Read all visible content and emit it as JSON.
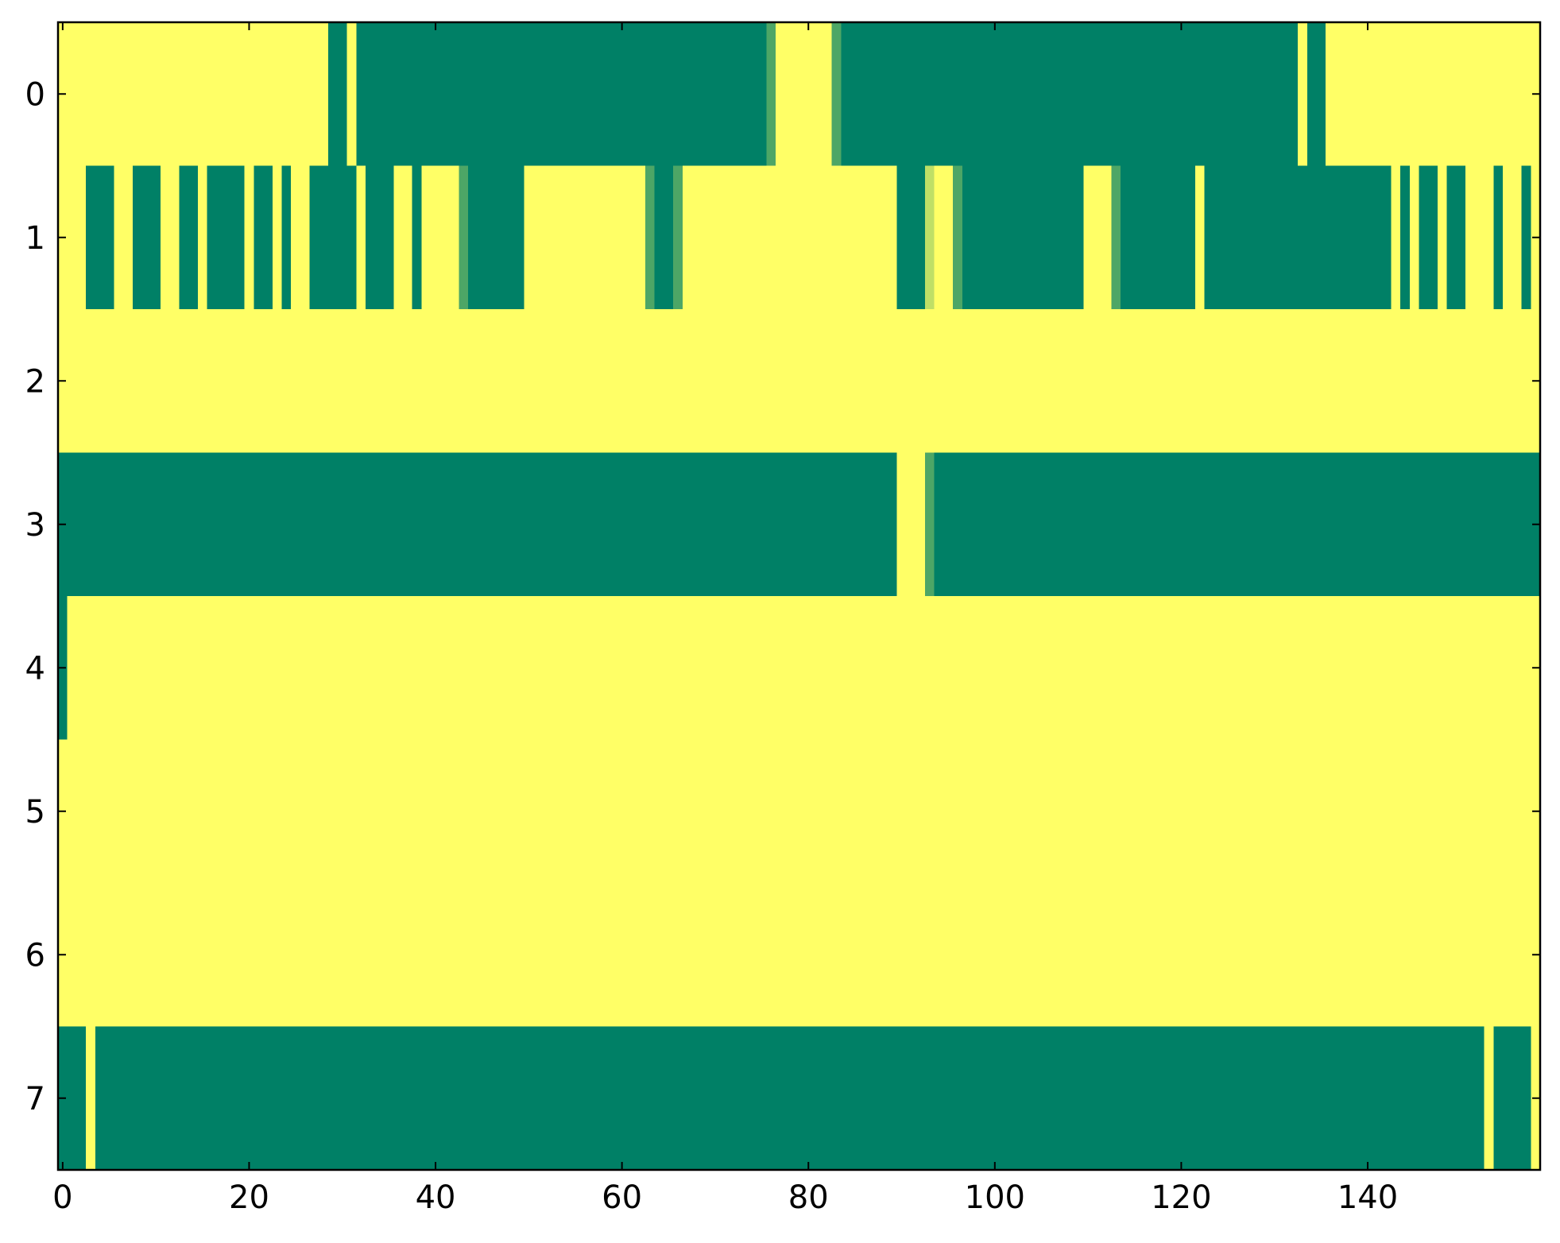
{
  "chart_data": {
    "type": "heatmap",
    "colormap": "summer",
    "xlim": [
      -0.5,
      158.5
    ],
    "ylim": [
      7.5,
      -0.5
    ],
    "xticks": [
      0,
      20,
      40,
      60,
      80,
      100,
      120,
      140
    ],
    "yticks": [
      0,
      1,
      2,
      3,
      4,
      5,
      6,
      7
    ],
    "values": [
      [
        1,
        1,
        1,
        1,
        1,
        1,
        1,
        1,
        1,
        1,
        1,
        1,
        1,
        1,
        1,
        1,
        1,
        1,
        1,
        1,
        1,
        1,
        1,
        1,
        1,
        1,
        1,
        1,
        1,
        0,
        0,
        1,
        0,
        0,
        0,
        0,
        0,
        0,
        0,
        0,
        0,
        0,
        0,
        0,
        0,
        0,
        0,
        0,
        0,
        0,
        0,
        0,
        0,
        0,
        0,
        0,
        0,
        0,
        0,
        0,
        0,
        0,
        0,
        0,
        0,
        0,
        0,
        0,
        0,
        0,
        0,
        0,
        0,
        0,
        0,
        0,
        0.3,
        1,
        1,
        1,
        1,
        1,
        1,
        0.3,
        0,
        0,
        0,
        0,
        0,
        0,
        0,
        0,
        0,
        0,
        0,
        0,
        0,
        0,
        0,
        0,
        0,
        0,
        0,
        0,
        0,
        0,
        0,
        0,
        0,
        0,
        0,
        0,
        0,
        0,
        0,
        0,
        0,
        0,
        0,
        0,
        0,
        0,
        0,
        0,
        0,
        0,
        0,
        0,
        0,
        0,
        0,
        0,
        0,
        1,
        0,
        0,
        1,
        1,
        1,
        1,
        1,
        1,
        1,
        1,
        1,
        1,
        1,
        1,
        1,
        1,
        1,
        1,
        1,
        1,
        1,
        1,
        1,
        1,
        1
      ],
      [
        1,
        1,
        1,
        0,
        0,
        0,
        1,
        1,
        0,
        0,
        0,
        1,
        1,
        0,
        0,
        1,
        0,
        0,
        0,
        0,
        1,
        0,
        0,
        1,
        0,
        1,
        1,
        0,
        0,
        0,
        0,
        0,
        1,
        0,
        0,
        0,
        1,
        1,
        0,
        1,
        1,
        1,
        1,
        0.3,
        0,
        0,
        0,
        0,
        0,
        0,
        1,
        1,
        1,
        1,
        1,
        1,
        1,
        1,
        1,
        1,
        1,
        1,
        1,
        0.3,
        0,
        0,
        0.3,
        1,
        1,
        1,
        1,
        1,
        1,
        1,
        1,
        1,
        1,
        1,
        1,
        1,
        1,
        1,
        1,
        1,
        1,
        1,
        1,
        1,
        1,
        1,
        0,
        0,
        0,
        0.75,
        1,
        1,
        0.3,
        0,
        0,
        0,
        0,
        0,
        0,
        0,
        0,
        0,
        0,
        0,
        0,
        0,
        1,
        1,
        1,
        0.3,
        0,
        0,
        0,
        0,
        0,
        0,
        0,
        0,
        1,
        0,
        0,
        0,
        0,
        0,
        0,
        0,
        0,
        0,
        0,
        0,
        0,
        0,
        0,
        0,
        0,
        0,
        0,
        0,
        0,
        1,
        0,
        1,
        0,
        0,
        1,
        0,
        0,
        1,
        1,
        1,
        0,
        1,
        1,
        0,
        1
      ],
      [
        1,
        1,
        1,
        1,
        1,
        1,
        1,
        1,
        1,
        1,
        1,
        1,
        1,
        1,
        1,
        1,
        1,
        1,
        1,
        1,
        1,
        1,
        1,
        1,
        1,
        1,
        1,
        1,
        1,
        1,
        1,
        1,
        1,
        1,
        1,
        1,
        1,
        1,
        1,
        1,
        1,
        1,
        1,
        1,
        1,
        1,
        1,
        1,
        1,
        1,
        1,
        1,
        1,
        1,
        1,
        1,
        1,
        1,
        1,
        1,
        1,
        1,
        1,
        1,
        1,
        1,
        1,
        1,
        1,
        1,
        1,
        1,
        1,
        1,
        1,
        1,
        1,
        1,
        1,
        1,
        1,
        1,
        1,
        1,
        1,
        1,
        1,
        1,
        1,
        1,
        1,
        1,
        1,
        1,
        1,
        1,
        1,
        1,
        1,
        1,
        1,
        1,
        1,
        1,
        1,
        1,
        1,
        1,
        1,
        1,
        1,
        1,
        1,
        1,
        1,
        1,
        1,
        1,
        1,
        1,
        1,
        1,
        1,
        1,
        1,
        1,
        1,
        1,
        1,
        1,
        1,
        1,
        1,
        1,
        1,
        1,
        1,
        1,
        1,
        1,
        1,
        1,
        1,
        1,
        1,
        1,
        1,
        1,
        1,
        1,
        1,
        1,
        1,
        1,
        1,
        1,
        1,
        1,
        1
      ],
      [
        0,
        0,
        0,
        0,
        0,
        0,
        0,
        0,
        0,
        0,
        0,
        0,
        0,
        0,
        0,
        0,
        0,
        0,
        0,
        0,
        0,
        0,
        0,
        0,
        0,
        0,
        0,
        0,
        0,
        0,
        0,
        0,
        0,
        0,
        0,
        0,
        0,
        0,
        0,
        0,
        0,
        0,
        0,
        0,
        0,
        0,
        0,
        0,
        0,
        0,
        0,
        0,
        0,
        0,
        0,
        0,
        0,
        0,
        0,
        0,
        0,
        0,
        0,
        0,
        0,
        0,
        0,
        0,
        0,
        0,
        0,
        0,
        0,
        0,
        0,
        0,
        0,
        0,
        0,
        0,
        0,
        0,
        0,
        0,
        0,
        0,
        0,
        0,
        0,
        0,
        1,
        1,
        1,
        0.3,
        0,
        0,
        0,
        0,
        0,
        0,
        0,
        0,
        0,
        0,
        0,
        0,
        0,
        0,
        0,
        0,
        0,
        0,
        0,
        0,
        0,
        0,
        0,
        0,
        0,
        0,
        0,
        0,
        0,
        0,
        0,
        0,
        0,
        0,
        0,
        0,
        0,
        0,
        0,
        0,
        0,
        0,
        0,
        0,
        0,
        0,
        0,
        0,
        0,
        0,
        0,
        0,
        0,
        0,
        0,
        0,
        0,
        0,
        0,
        0,
        0,
        0,
        0,
        0,
        0
      ],
      [
        0,
        1,
        1,
        1,
        1,
        1,
        1,
        1,
        1,
        1,
        1,
        1,
        1,
        1,
        1,
        1,
        1,
        1,
        1,
        1,
        1,
        1,
        1,
        1,
        1,
        1,
        1,
        1,
        1,
        1,
        1,
        1,
        1,
        1,
        1,
        1,
        1,
        1,
        1,
        1,
        1,
        1,
        1,
        1,
        1,
        1,
        1,
        1,
        1,
        1,
        1,
        1,
        1,
        1,
        1,
        1,
        1,
        1,
        1,
        1,
        1,
        1,
        1,
        1,
        1,
        1,
        1,
        1,
        1,
        1,
        1,
        1,
        1,
        1,
        1,
        1,
        1,
        1,
        1,
        1,
        1,
        1,
        1,
        1,
        1,
        1,
        1,
        1,
        1,
        1,
        1,
        1,
        1,
        1,
        1,
        1,
        1,
        1,
        1,
        1,
        1,
        1,
        1,
        1,
        1,
        1,
        1,
        1,
        1,
        1,
        1,
        1,
        1,
        1,
        1,
        1,
        1,
        1,
        1,
        1,
        1,
        1,
        1,
        1,
        1,
        1,
        1,
        1,
        1,
        1,
        1,
        1,
        1,
        1,
        1,
        1,
        1,
        1,
        1,
        1,
        1,
        1,
        1,
        1,
        1,
        1,
        1,
        1,
        1,
        1,
        1,
        1,
        1,
        1,
        1,
        1,
        1,
        1,
        1
      ],
      [
        1,
        1,
        1,
        1,
        1,
        1,
        1,
        1,
        1,
        1,
        1,
        1,
        1,
        1,
        1,
        1,
        1,
        1,
        1,
        1,
        1,
        1,
        1,
        1,
        1,
        1,
        1,
        1,
        1,
        1,
        1,
        1,
        1,
        1,
        1,
        1,
        1,
        1,
        1,
        1,
        1,
        1,
        1,
        1,
        1,
        1,
        1,
        1,
        1,
        1,
        1,
        1,
        1,
        1,
        1,
        1,
        1,
        1,
        1,
        1,
        1,
        1,
        1,
        1,
        1,
        1,
        1,
        1,
        1,
        1,
        1,
        1,
        1,
        1,
        1,
        1,
        1,
        1,
        1,
        1,
        1,
        1,
        1,
        1,
        1,
        1,
        1,
        1,
        1,
        1,
        1,
        1,
        1,
        1,
        1,
        1,
        1,
        1,
        1,
        1,
        1,
        1,
        1,
        1,
        1,
        1,
        1,
        1,
        1,
        1,
        1,
        1,
        1,
        1,
        1,
        1,
        1,
        1,
        1,
        1,
        1,
        1,
        1,
        1,
        1,
        1,
        1,
        1,
        1,
        1,
        1,
        1,
        1,
        1,
        1,
        1,
        1,
        1,
        1,
        1,
        1,
        1,
        1,
        1,
        1,
        1,
        1,
        1,
        1,
        1,
        1,
        1,
        1,
        1,
        1,
        1,
        1,
        1,
        1
      ],
      [
        1,
        1,
        1,
        1,
        1,
        1,
        1,
        1,
        1,
        1,
        1,
        1,
        1,
        1,
        1,
        1,
        1,
        1,
        1,
        1,
        1,
        1,
        1,
        1,
        1,
        1,
        1,
        1,
        1,
        1,
        1,
        1,
        1,
        1,
        1,
        1,
        1,
        1,
        1,
        1,
        1,
        1,
        1,
        1,
        1,
        1,
        1,
        1,
        1,
        1,
        1,
        1,
        1,
        1,
        1,
        1,
        1,
        1,
        1,
        1,
        1,
        1,
        1,
        1,
        1,
        1,
        1,
        1,
        1,
        1,
        1,
        1,
        1,
        1,
        1,
        1,
        1,
        1,
        1,
        1,
        1,
        1,
        1,
        1,
        1,
        1,
        1,
        1,
        1,
        1,
        1,
        1,
        1,
        1,
        1,
        1,
        1,
        1,
        1,
        1,
        1,
        1,
        1,
        1,
        1,
        1,
        1,
        1,
        1,
        1,
        1,
        1,
        1,
        1,
        1,
        1,
        1,
        1,
        1,
        1,
        1,
        1,
        1,
        1,
        1,
        1,
        1,
        1,
        1,
        1,
        1,
        1,
        1,
        1,
        1,
        1,
        1,
        1,
        1,
        1,
        1,
        1,
        1,
        1,
        1,
        1,
        1,
        1,
        1,
        1,
        1,
        1,
        1,
        1,
        1,
        1,
        1,
        1,
        1
      ],
      [
        0,
        0,
        0,
        1,
        0,
        0,
        0,
        0,
        0,
        0,
        0,
        0,
        0,
        0,
        0,
        0,
        0,
        0,
        0,
        0,
        0,
        0,
        0,
        0,
        0,
        0,
        0,
        0,
        0,
        0,
        0,
        0,
        0,
        0,
        0,
        0,
        0,
        0,
        0,
        0,
        0,
        0,
        0,
        0,
        0,
        0,
        0,
        0,
        0,
        0,
        0,
        0,
        0,
        0,
        0,
        0,
        0,
        0,
        0,
        0,
        0,
        0,
        0,
        0,
        0,
        0,
        0,
        0,
        0,
        0,
        0,
        0,
        0,
        0,
        0,
        0,
        0,
        0,
        0,
        0,
        0,
        0,
        0,
        0,
        0,
        0,
        0,
        0,
        0,
        0,
        0,
        0,
        0,
        0,
        0,
        0,
        0,
        0,
        0,
        0,
        0,
        0,
        0,
        0,
        0,
        0,
        0,
        0,
        0,
        0,
        0,
        0,
        0,
        0,
        0,
        0,
        0,
        0,
        0,
        0,
        0,
        0,
        0,
        0,
        0,
        0,
        0,
        0,
        0,
        0,
        0,
        0,
        0,
        0,
        0,
        0,
        0,
        0,
        0,
        0,
        0,
        0,
        0,
        0,
        0,
        0,
        0,
        0,
        0,
        0,
        0,
        0,
        0,
        1,
        0,
        0,
        0,
        0,
        1
      ]
    ]
  }
}
